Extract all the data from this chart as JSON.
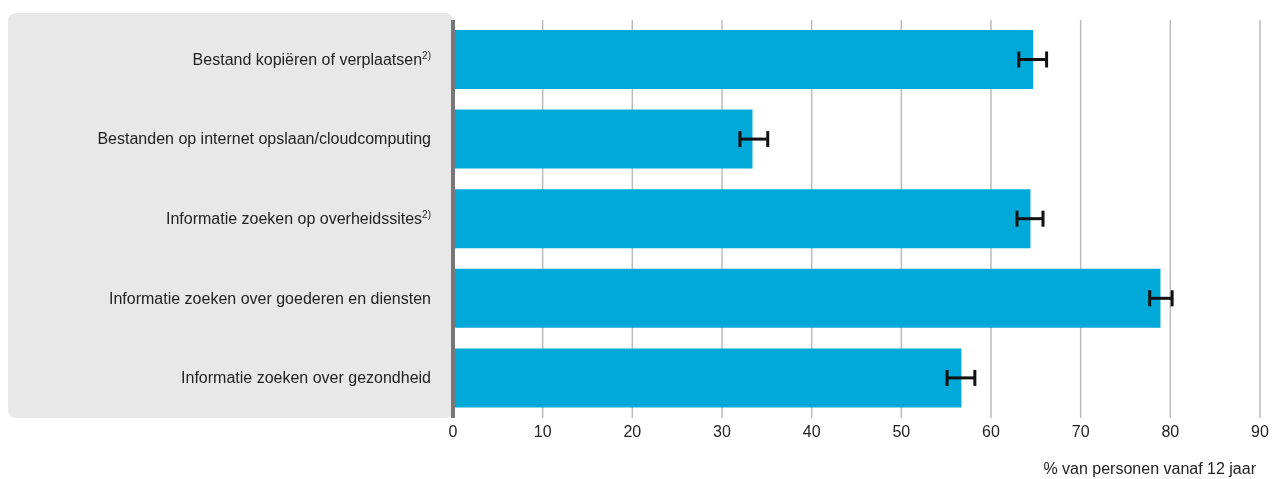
{
  "chart_data": {
    "type": "bar",
    "orientation": "horizontal",
    "xlabel": "% van personen vanaf 12 jaar",
    "categories": [
      "Bestand kopiëren of verplaatsen$^{2)}$",
      "Bestanden op internet opslaan/cloudcomputing",
      "Informatie zoeken op overheidssites$^{2)}$",
      "Informatie zoeken over goederen en diensten",
      "Informatie zoeken over gezondheid"
    ],
    "values": [
      64.7,
      33.4,
      64.4,
      78.9,
      56.7
    ],
    "errors": [
      [
        63.1,
        66.2
      ],
      [
        32.0,
        35.1
      ],
      [
        62.9,
        65.8
      ],
      [
        77.7,
        80.2
      ],
      [
        55.1,
        58.2
      ]
    ],
    "color": "#00a9d8",
    "xlim": [
      0,
      90
    ],
    "xticks": [
      0,
      10,
      20,
      30,
      40,
      50,
      60,
      70,
      80,
      90
    ],
    "grid": "x"
  }
}
